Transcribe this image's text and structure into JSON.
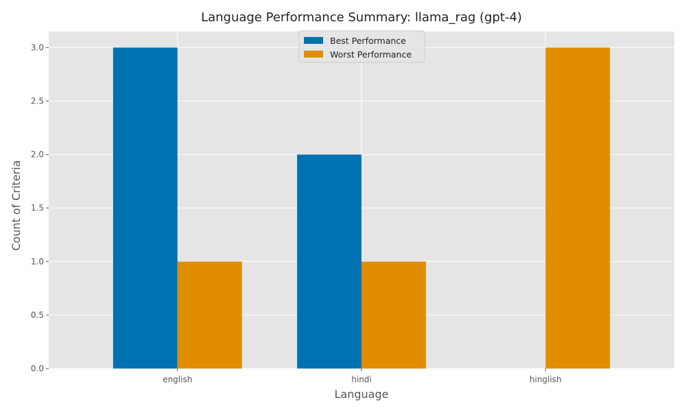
{
  "chart_data": {
    "type": "bar",
    "title": "Language Performance Summary: llama_rag (gpt-4)",
    "xlabel": "Language",
    "ylabel": "Count of Criteria",
    "categories": [
      "english",
      "hindi",
      "hinglish"
    ],
    "series": [
      {
        "name": "Best Performance",
        "values": [
          3,
          2,
          0
        ],
        "color": "#0072b2"
      },
      {
        "name": "Worst Performance",
        "values": [
          1,
          1,
          3
        ],
        "color": "#e08e00"
      }
    ],
    "ylim": [
      0,
      3.15
    ],
    "yticks": [
      "0.0",
      "0.5",
      "1.0",
      "1.5",
      "2.0",
      "2.5",
      "3.0"
    ],
    "ytick_values": [
      0,
      0.5,
      1.0,
      1.5,
      2.0,
      2.5,
      3.0
    ],
    "grid": true,
    "legend_position": "top-center",
    "plot_background": "#e5e5e5",
    "grid_color": "#ffffff"
  }
}
